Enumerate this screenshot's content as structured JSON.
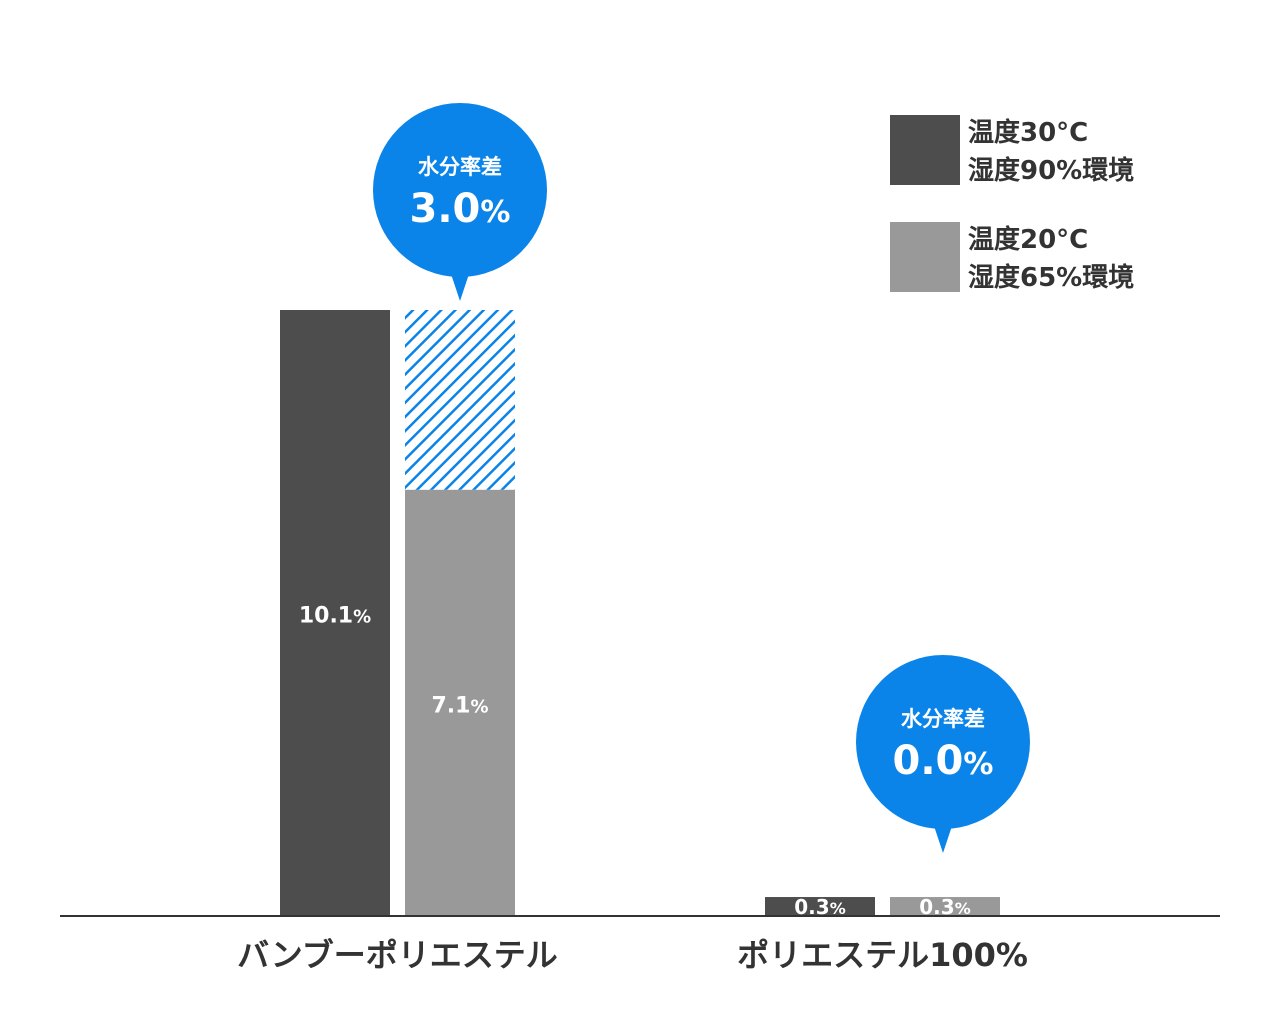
{
  "chart_data": {
    "type": "bar",
    "categories": [
      "バンブーポリエステル",
      "ポリエステル100%"
    ],
    "series": [
      {
        "name": "温度30°C\n湿度90%環境",
        "values": [
          10.1,
          0.3
        ],
        "labels": [
          "10.1%",
          "0.3%"
        ],
        "color": "#4d4d4d"
      },
      {
        "name": "温度20°C\n湿度65%環境",
        "values": [
          7.1,
          0.3
        ],
        "labels": [
          "7.1%",
          "0.3%"
        ],
        "color": "#999999"
      }
    ],
    "ylim": [
      0,
      10.1
    ],
    "grid": false,
    "legend_position": "top-right",
    "annotations": [
      {
        "category": "バンブーポリエステル",
        "title": "水分率差",
        "value": 3.0,
        "value_label": "3.0%",
        "color": "#0a84e8"
      },
      {
        "category": "ポリエステル100%",
        "title": "水分率差",
        "value": 0.0,
        "value_label": "0.0%",
        "color": "#0a84e8"
      }
    ],
    "difference_hatch_color": "#0a84e8",
    "axis_color": "#333333",
    "category_label_color": "#333333",
    "value_label_color": "#ffffff"
  }
}
